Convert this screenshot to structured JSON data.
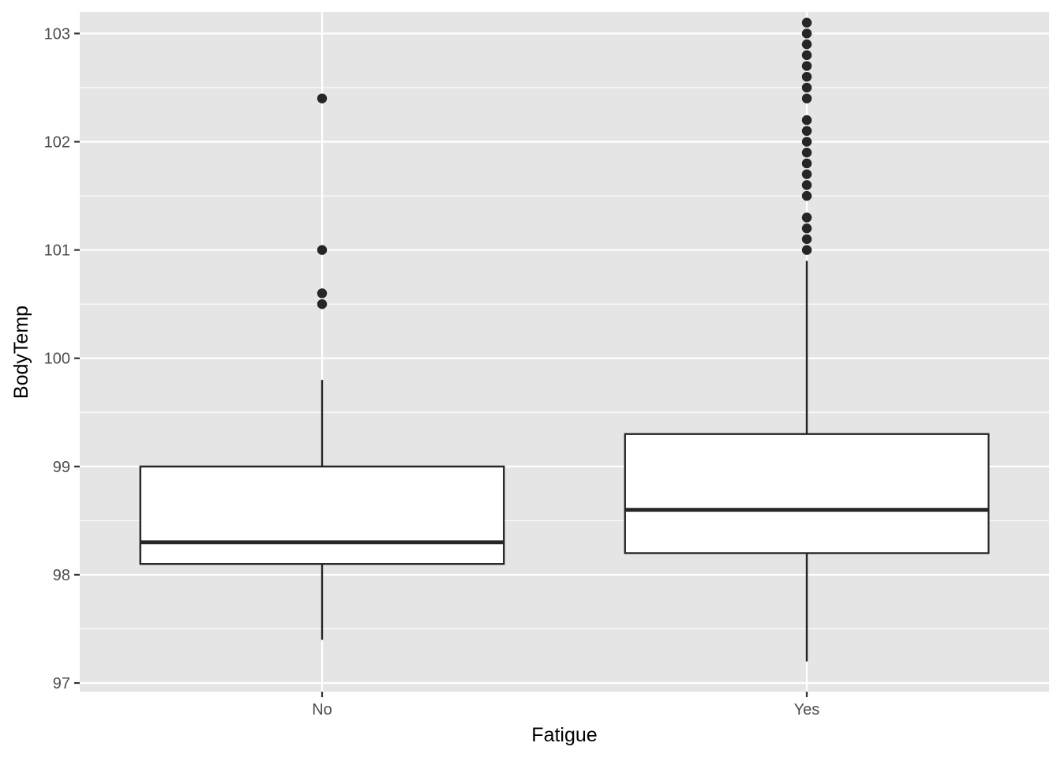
{
  "chart_data": {
    "type": "boxplot",
    "title": "",
    "xlabel": "Fatigue",
    "ylabel": "BodyTemp",
    "categories": [
      "No",
      "Yes"
    ],
    "ylim": [
      96.92,
      103.2
    ],
    "yticks": [
      97,
      98,
      99,
      100,
      101,
      102,
      103
    ],
    "grid": true,
    "boxes": [
      {
        "category": "No",
        "whisker_low": 97.4,
        "q1": 98.1,
        "median": 98.3,
        "q3": 99.0,
        "whisker_high": 99.8,
        "outliers": [
          100.5,
          100.6,
          101.0,
          102.4
        ]
      },
      {
        "category": "Yes",
        "whisker_low": 97.2,
        "q1": 98.2,
        "median": 98.6,
        "q3": 99.3,
        "whisker_high": 100.9,
        "outliers": [
          101.0,
          101.1,
          101.2,
          101.3,
          101.5,
          101.6,
          101.7,
          101.8,
          101.9,
          102.0,
          102.1,
          102.2,
          102.4,
          102.5,
          102.6,
          102.7,
          102.8,
          102.9,
          103.0,
          103.1
        ]
      }
    ],
    "colors": {
      "panel": "#e5e5e5",
      "grid": "#ffffff",
      "box_fill": "#ffffff",
      "box_stroke": "#262626",
      "point": "#262626"
    }
  }
}
